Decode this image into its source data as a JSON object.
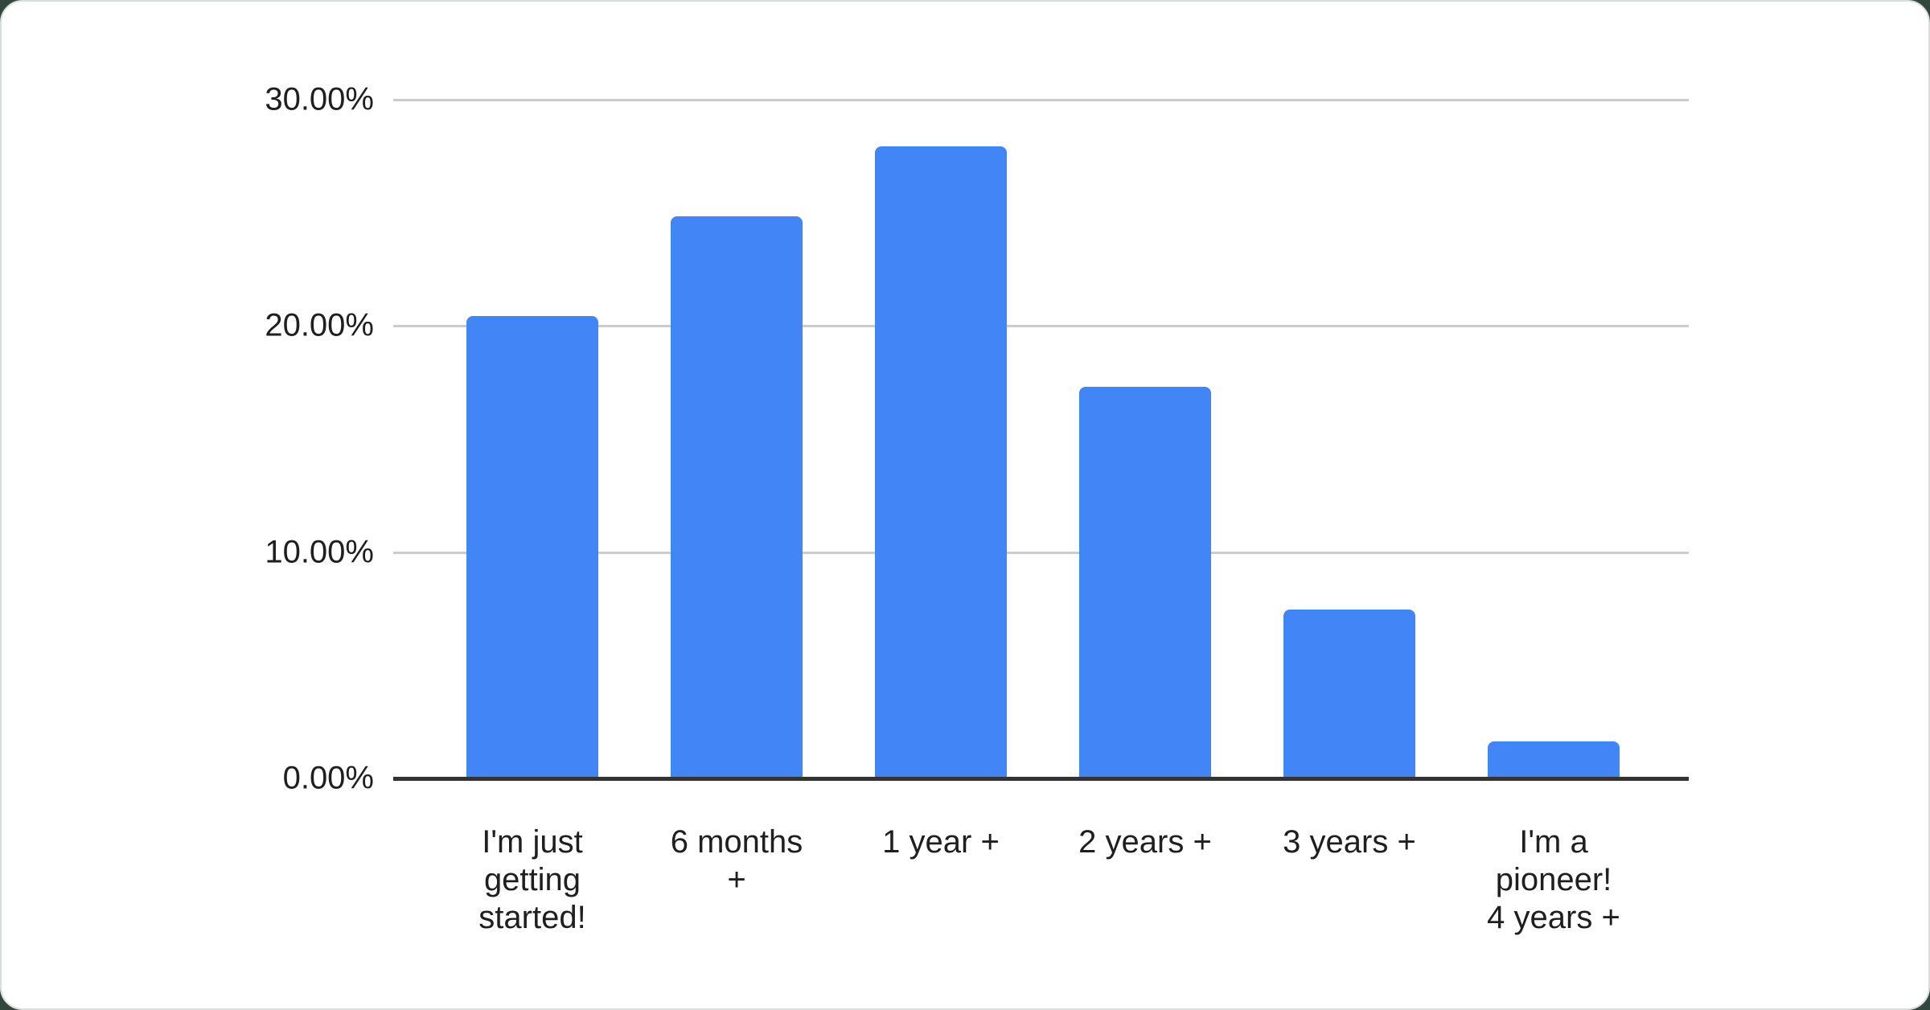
{
  "page": {
    "background_color": "#33483c",
    "card_background": "#ffffff",
    "card_border_color": "#d9ddde"
  },
  "chart_data": {
    "type": "bar",
    "title": "",
    "xlabel": "",
    "ylabel": "",
    "categories": [
      "I'm just getting started!",
      "6 months +",
      "1 year +",
      "2 years +",
      "3 years +",
      "I'm a pioneer! 4 years +"
    ],
    "category_lines": [
      [
        "I'm just",
        "getting",
        "started!"
      ],
      [
        "6 months",
        "+"
      ],
      [
        "1 year +"
      ],
      [
        "2 years +"
      ],
      [
        "3 years +"
      ],
      [
        "I'm a",
        "pioneer!",
        "4 years +"
      ]
    ],
    "values": [
      20.45,
      24.85,
      27.95,
      17.3,
      7.45,
      1.65
    ],
    "unit": "%",
    "ylim": [
      0,
      30
    ],
    "yticks": [
      {
        "value": 0,
        "label": "0.00%"
      },
      {
        "value": 10,
        "label": "10.00%"
      },
      {
        "value": 20,
        "label": "20.00%"
      },
      {
        "value": 30,
        "label": "30.00%"
      }
    ],
    "grid": true,
    "legend_position": "none",
    "bar_color": "#4285f4",
    "gridline_color": "#cccccc",
    "axis_color": "#333333",
    "label_color": "#1f1f1f"
  }
}
